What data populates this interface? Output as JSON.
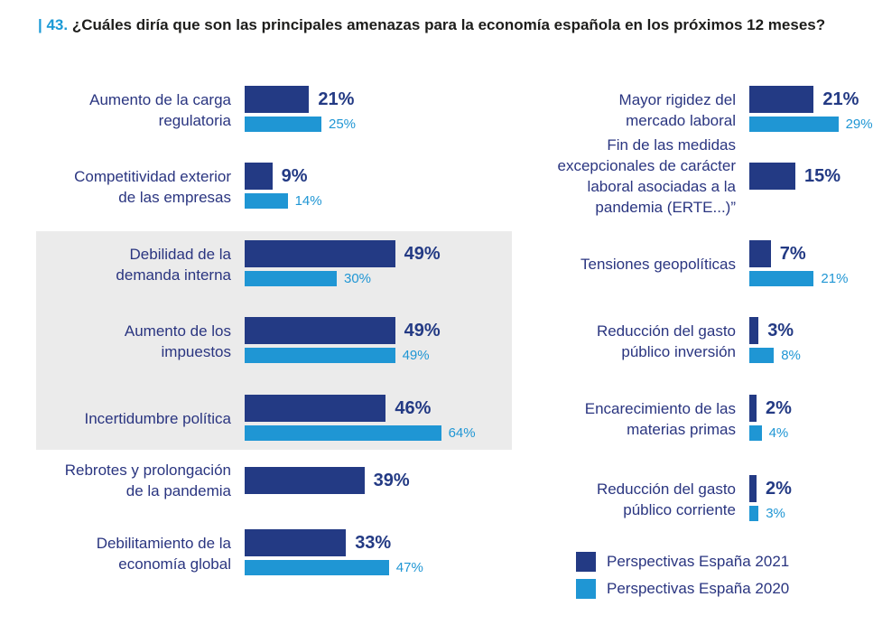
{
  "title_number": "| 43.",
  "title_text": "¿Cuáles diría que son las principales amenazas para la economía española en los próximos 12 meses?",
  "colors": {
    "series_2021": "#233a84",
    "series_2020": "#1f96d4",
    "highlight_bg": "#ebebeb"
  },
  "chart_data": {
    "type": "bar",
    "orientation": "horizontal",
    "title": "¿Cuáles diría que son las principales amenazas para la economía española en los próximos 12 meses?",
    "series": [
      {
        "name": "Perspectivas España 2021"
      },
      {
        "name": "Perspectivas España 2020"
      }
    ],
    "groups": [
      {
        "items": [
          {
            "category": "Aumento de la carga\nregulatoria",
            "v2021": 21,
            "v2020": 25,
            "label2021": "21%",
            "label2020": "25%"
          },
          {
            "category": "Competitividad exterior\nde las empresas",
            "v2021": 9,
            "v2020": 14,
            "label2021": "9%",
            "label2020": "14%"
          },
          {
            "category": "Debilidad de la\ndemanda interna",
            "v2021": 49,
            "v2020": 30,
            "label2021": "49%",
            "label2020": "30%",
            "highlighted": true
          },
          {
            "category": "Aumento de los\nimpuestos",
            "v2021": 49,
            "v2020": 49,
            "label2021": "49%",
            "label2020": "49%",
            "highlighted": true
          },
          {
            "category": "Incertidumbre política",
            "v2021": 46,
            "v2020": 64,
            "label2021": "46%",
            "label2020": "64%",
            "highlighted": true
          },
          {
            "category": "Rebrotes y prolongación\nde la pandemia",
            "v2021": 39,
            "v2020": null,
            "label2021": "39%",
            "label2020": null
          },
          {
            "category": "Debilitamiento de la\neconomía global",
            "v2021": 33,
            "v2020": 47,
            "label2021": "33%",
            "label2020": "47%"
          }
        ]
      },
      {
        "items": [
          {
            "category": "Mayor rigidez del\nmercado laboral",
            "v2021": 21,
            "v2020": 29,
            "label2021": "21%",
            "label2020": "29%"
          },
          {
            "category": "Fin de las medidas\nexcepcionales de carácter\nlaboral asociadas a la\npandemia (ERTE...)”",
            "v2021": 15,
            "v2020": null,
            "label2021": "15%",
            "label2020": null
          },
          {
            "category": "Tensiones geopolíticas",
            "v2021": 7,
            "v2020": 21,
            "label2021": "7%",
            "label2020": "21%"
          },
          {
            "category": "Reducción del gasto\npúblico inversión",
            "v2021": 3,
            "v2020": 8,
            "label2021": "3%",
            "label2020": "8%"
          },
          {
            "category": "Encarecimiento de las\nmaterias primas",
            "v2021": 2,
            "v2020": 4,
            "label2021": "2%",
            "label2020": "4%"
          },
          {
            "category": "Reducción del gasto\npúblico corriente",
            "v2021": 2,
            "v2020": 3,
            "label2021": "2%",
            "label2020": "3%"
          }
        ]
      }
    ],
    "legend": {
      "placement": "bottom-right",
      "entries": [
        "Perspectivas España 2021",
        "Perspectivas España 2020"
      ]
    },
    "grid": false
  }
}
